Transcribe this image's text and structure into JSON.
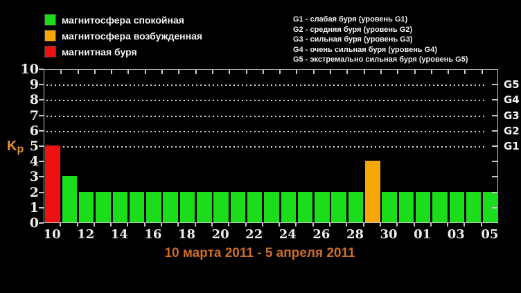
{
  "colors": {
    "quiet": "#1cdd1c",
    "excited": "#f5a808",
    "storm": "#ee1111",
    "title": "#cf6e28",
    "kp_label": "#e0912f",
    "axis": "#c8c8c8"
  },
  "legend": {
    "items": [
      {
        "label": "магнитосфера спокойная",
        "status": "quiet"
      },
      {
        "label": "магнитосфера возбужденная",
        "status": "excited"
      },
      {
        "label": "магнитная буря",
        "status": "storm"
      }
    ]
  },
  "storm_scale": {
    "lines": [
      "G1 - слабая буря (уровень G1)",
      "G2 - средняя буря (уровень G2)",
      "G3 - сильная буря (уровень G3)",
      "G4 - очень сильная буря (уровень G4)",
      "G5 - экстремально сильная буря (уровень G5)"
    ]
  },
  "axis": {
    "kp_label": "Kp",
    "y_ticks": [
      0,
      1,
      2,
      3,
      4,
      5,
      6,
      7,
      8,
      9,
      10
    ],
    "right_labels": [
      {
        "label": "G1",
        "level": 5
      },
      {
        "label": "G2",
        "level": 6
      },
      {
        "label": "G3",
        "level": 7
      },
      {
        "label": "G4",
        "level": 8
      },
      {
        "label": "G5",
        "level": 9
      }
    ]
  },
  "chart_data": {
    "type": "bar",
    "title": "10 марта 2011 - 5 апреля 2011",
    "ylabel": "Kp",
    "ylim": [
      0,
      10
    ],
    "grid": "dotted horizontal lines at storm levels",
    "gridlines_at": [
      5,
      6,
      7,
      8,
      9
    ],
    "legend_position": "top-left",
    "x_tick_labels": [
      "10",
      "12",
      "14",
      "16",
      "18",
      "20",
      "22",
      "24",
      "26",
      "28",
      "30",
      "01",
      "03",
      "05"
    ],
    "bars": [
      {
        "date": "10",
        "kp": 5,
        "status": "storm"
      },
      {
        "date": "11",
        "kp": 3,
        "status": "quiet"
      },
      {
        "date": "12",
        "kp": 2,
        "status": "quiet"
      },
      {
        "date": "13",
        "kp": 2,
        "status": "quiet"
      },
      {
        "date": "14",
        "kp": 2,
        "status": "quiet"
      },
      {
        "date": "15",
        "kp": 2,
        "status": "quiet"
      },
      {
        "date": "16",
        "kp": 2,
        "status": "quiet"
      },
      {
        "date": "17",
        "kp": 2,
        "status": "quiet"
      },
      {
        "date": "18",
        "kp": 2,
        "status": "quiet"
      },
      {
        "date": "19",
        "kp": 2,
        "status": "quiet"
      },
      {
        "date": "20",
        "kp": 2,
        "status": "quiet"
      },
      {
        "date": "21",
        "kp": 2,
        "status": "quiet"
      },
      {
        "date": "22",
        "kp": 2,
        "status": "quiet"
      },
      {
        "date": "23",
        "kp": 2,
        "status": "quiet"
      },
      {
        "date": "24",
        "kp": 2,
        "status": "quiet"
      },
      {
        "date": "25",
        "kp": 2,
        "status": "quiet"
      },
      {
        "date": "26",
        "kp": 2,
        "status": "quiet"
      },
      {
        "date": "27",
        "kp": 2,
        "status": "quiet"
      },
      {
        "date": "28",
        "kp": 2,
        "status": "quiet"
      },
      {
        "date": "29",
        "kp": 4,
        "status": "excited"
      },
      {
        "date": "30",
        "kp": 2,
        "status": "quiet"
      },
      {
        "date": "31",
        "kp": 2,
        "status": "quiet"
      },
      {
        "date": "01",
        "kp": 2,
        "status": "quiet"
      },
      {
        "date": "02",
        "kp": 2,
        "status": "quiet"
      },
      {
        "date": "03",
        "kp": 2,
        "status": "quiet"
      },
      {
        "date": "04",
        "kp": 2,
        "status": "quiet"
      },
      {
        "date": "05",
        "kp": 2,
        "status": "quiet"
      }
    ]
  }
}
